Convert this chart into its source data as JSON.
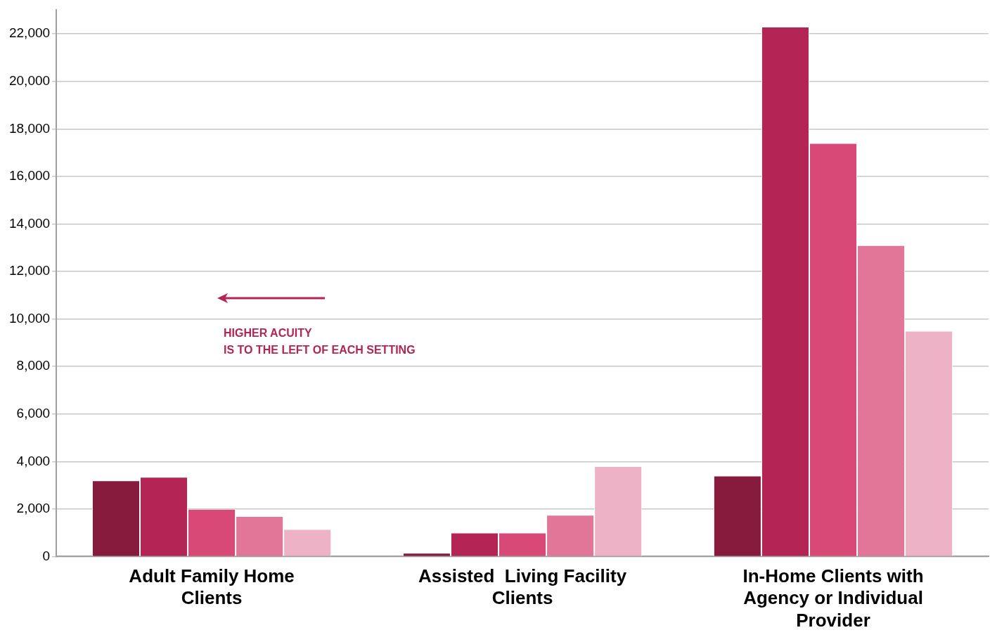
{
  "chart_data": {
    "type": "bar",
    "categories": [
      "Adult Family Home Clients",
      "Assisted  Living Facility Clients",
      "In-Home Clients with Agency or Individual Provider"
    ],
    "series": [
      {
        "color": "#861b3e",
        "values": [
          3200,
          150,
          3400
        ]
      },
      {
        "color": "#b32554",
        "values": [
          3350,
          1000,
          22300
        ]
      },
      {
        "color": "#d94978",
        "values": [
          2000,
          1000,
          17400
        ]
      },
      {
        "color": "#e27699",
        "values": [
          1700,
          1750,
          13100
        ]
      },
      {
        "color": "#edb2c6",
        "values": [
          1150,
          3800,
          9500
        ]
      }
    ],
    "ylim": [
      0,
      23000
    ],
    "yticks": [
      0,
      {
        "value": 2000,
        "label": "2,000"
      },
      {
        "value": 4000,
        "label": "4,000"
      },
      {
        "value": 6000,
        "label": "6,000"
      },
      {
        "value": 8000,
        "label": "8,000"
      },
      {
        "value": 10000,
        "label": "10,000"
      },
      {
        "value": 12000,
        "label": "12,000"
      },
      {
        "value": 14000,
        "label": "14,000"
      },
      {
        "value": 16000,
        "label": "16,000"
      },
      {
        "value": 18000,
        "label": "18,000"
      },
      {
        "value": 20000,
        "label": "20,000"
      },
      {
        "value": 22000,
        "label": "22,000"
      }
    ],
    "grid": "y",
    "legend": false,
    "annotations": [
      "HIGHER ACUITY\nIS TO THE LEFT OF EACH SETTING"
    ]
  }
}
